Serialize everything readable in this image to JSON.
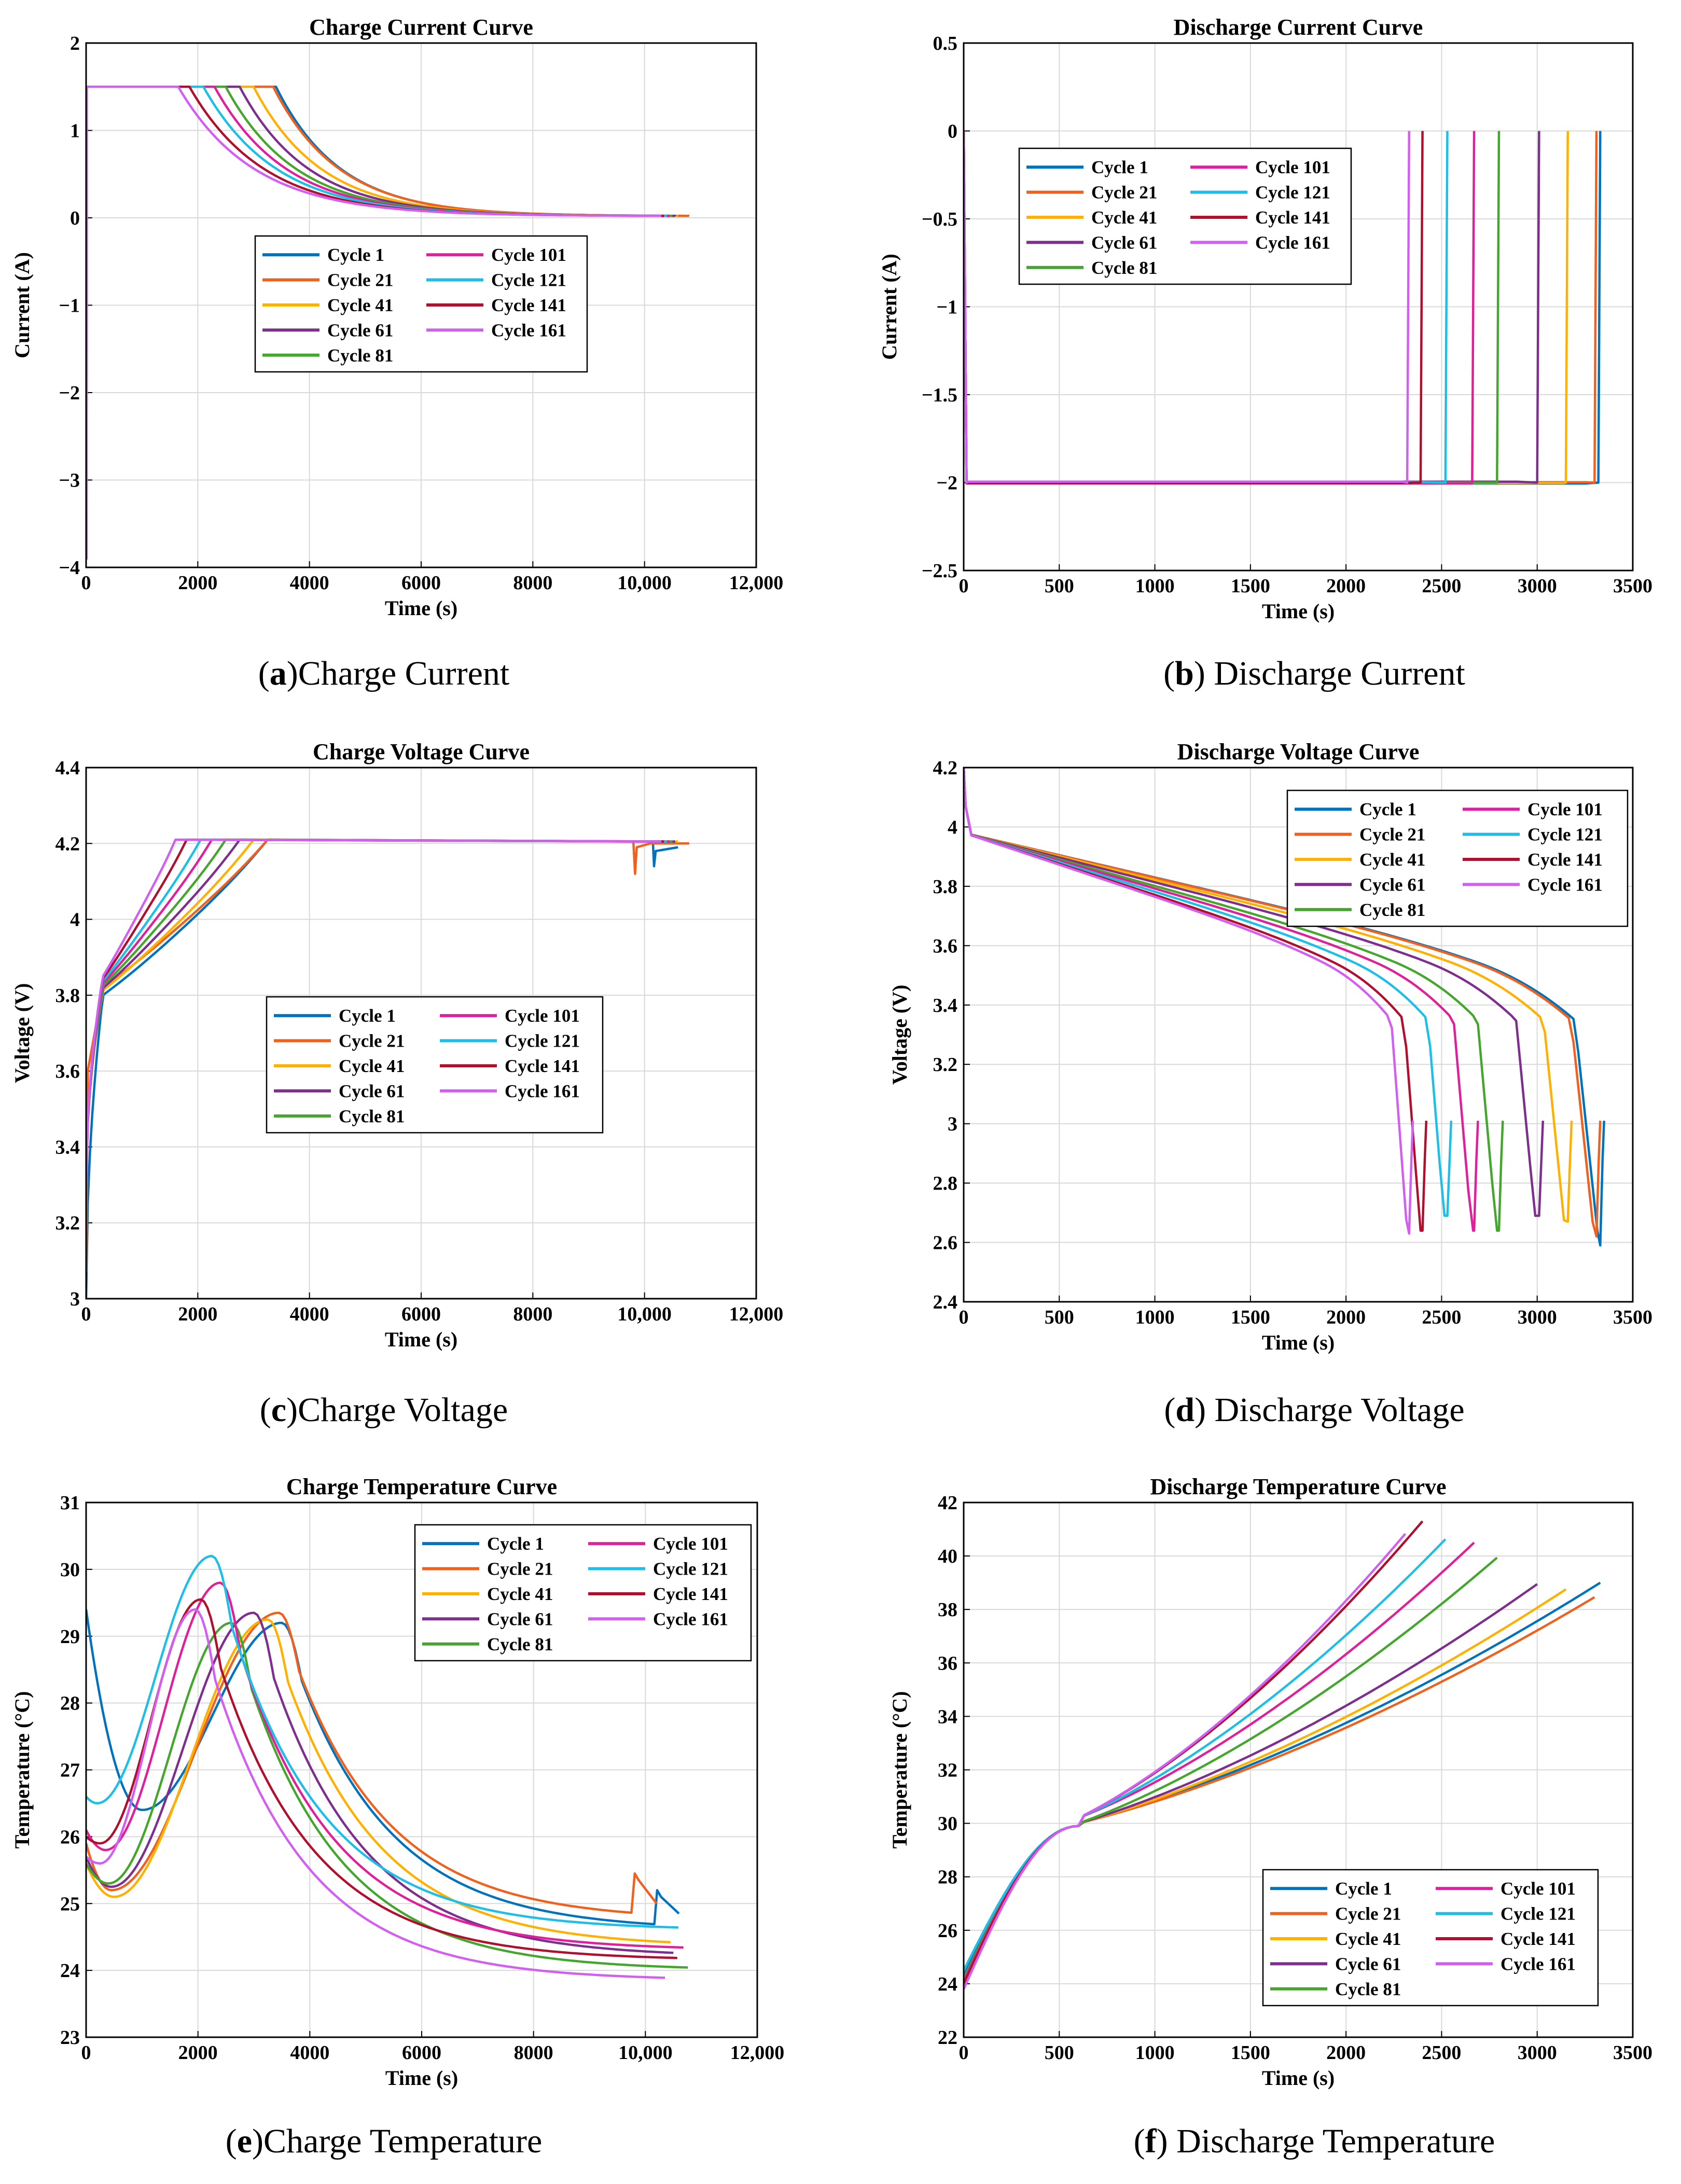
{
  "series_names": [
    "Cycle 1",
    "Cycle 21",
    "Cycle 41",
    "Cycle 61",
    "Cycle 81",
    "Cycle 101",
    "Cycle 121",
    "Cycle 141",
    "Cycle 161"
  ],
  "series_colors": [
    "#0072BD",
    "#F0611E",
    "#FFB000",
    "#7E2F8E",
    "#45A62E",
    "#E0209A",
    "#1DBFE8",
    "#B0102E",
    "#D35EF2"
  ],
  "chart_data": [
    {
      "id": "a",
      "type": "line",
      "title": "Charge Current Curve",
      "caption_letter": "a",
      "caption_paren_open": "(",
      "caption_paren_close": ")",
      "caption_text": "Charge Current",
      "xlabel": "Time (s)",
      "ylabel": "Current (A)",
      "xlim": [
        0,
        12000
      ],
      "ylim": [
        -4,
        2
      ],
      "xticks": [
        0,
        2000,
        4000,
        6000,
        8000,
        10000,
        12000
      ],
      "xtick_labels": [
        "0",
        "2000",
        "4000",
        "6000",
        "8000",
        "10,000",
        "12,000"
      ],
      "yticks": [
        -4,
        -3,
        -2,
        -1,
        0,
        1,
        2
      ],
      "ytick_labels": [
        "−4",
        "−3",
        "−2",
        "−1",
        "0",
        "1",
        "2"
      ],
      "legend_location": "center",
      "kind": "charge_current",
      "series": [
        {
          "name": "Cycle 1",
          "cv_start": 3400,
          "end": 10200
        },
        {
          "name": "Cycle 21",
          "cv_start": 3350,
          "end": 10800
        },
        {
          "name": "Cycle 41",
          "cv_start": 3000,
          "end": 10600
        },
        {
          "name": "Cycle 61",
          "cv_start": 2750,
          "end": 10550
        },
        {
          "name": "Cycle 81",
          "cv_start": 2500,
          "end": 10500
        },
        {
          "name": "Cycle 101",
          "cv_start": 2300,
          "end": 10450
        },
        {
          "name": "Cycle 121",
          "cv_start": 2100,
          "end": 10400
        },
        {
          "name": "Cycle 141",
          "cv_start": 1850,
          "end": 10350
        },
        {
          "name": "Cycle 161",
          "cv_start": 1650,
          "end": 10300
        }
      ]
    },
    {
      "id": "b",
      "type": "line",
      "title": "Discharge Current Curve",
      "caption_letter": "b",
      "caption_paren_open": "(",
      "caption_paren_close": ")",
      "caption_text": " Discharge Current",
      "xlabel": "Time (s)",
      "ylabel": "Current (A)",
      "xlim": [
        0,
        3500
      ],
      "ylim": [
        -2.5,
        0.5
      ],
      "xticks": [
        0,
        500,
        1000,
        1500,
        2000,
        2500,
        3000,
        3500
      ],
      "xtick_labels": [
        "0",
        "500",
        "1000",
        "1500",
        "2000",
        "2500",
        "3000",
        "3500"
      ],
      "yticks": [
        -2.5,
        -2,
        -1.5,
        -1,
        -0.5,
        0,
        0.5
      ],
      "ytick_labels": [
        "−2.5",
        "−2",
        "−1.5",
        "−1",
        "−0.5",
        "0",
        "0.5"
      ],
      "legend_location": "top-left",
      "kind": "discharge_current",
      "series": [
        {
          "name": "Cycle 1",
          "end": 3330
        },
        {
          "name": "Cycle 21",
          "end": 3310
        },
        {
          "name": "Cycle 41",
          "end": 3160
        },
        {
          "name": "Cycle 61",
          "end": 3010
        },
        {
          "name": "Cycle 81",
          "end": 2800
        },
        {
          "name": "Cycle 101",
          "end": 2670
        },
        {
          "name": "Cycle 121",
          "end": 2530
        },
        {
          "name": "Cycle 141",
          "end": 2400
        },
        {
          "name": "Cycle 161",
          "end": 2330
        }
      ]
    },
    {
      "id": "c",
      "type": "line",
      "title": "Charge Voltage Curve",
      "caption_letter": "c",
      "caption_paren_open": "(",
      "caption_paren_close": ")",
      "caption_text": "Charge Voltage",
      "xlabel": "Time (s)",
      "ylabel": "Voltage (V)",
      "xlim": [
        0,
        12000
      ],
      "ylim": [
        3,
        4.4
      ],
      "xticks": [
        0,
        2000,
        4000,
        6000,
        8000,
        10000,
        12000
      ],
      "xtick_labels": [
        "0",
        "2000",
        "4000",
        "6000",
        "8000",
        "10,000",
        "12,000"
      ],
      "yticks": [
        3,
        3.2,
        3.4,
        3.6,
        3.8,
        4,
        4.2,
        4.4
      ],
      "ytick_labels": [
        "3",
        "3.2",
        "3.4",
        "3.6",
        "3.8",
        "4",
        "4.2",
        "4.4"
      ],
      "legend_location": "center",
      "kind": "charge_voltage",
      "series": [
        {
          "name": "Cycle 1",
          "cv_start": 3250,
          "end": 10200
        },
        {
          "name": "Cycle 21",
          "cv_start": 3250,
          "end": 10800
        },
        {
          "name": "Cycle 41",
          "cv_start": 3000,
          "end": 10600
        },
        {
          "name": "Cycle 61",
          "cv_start": 2750,
          "end": 10550
        },
        {
          "name": "Cycle 81",
          "cv_start": 2500,
          "end": 10500
        },
        {
          "name": "Cycle 101",
          "cv_start": 2250,
          "end": 10450
        },
        {
          "name": "Cycle 121",
          "cv_start": 2050,
          "end": 10400
        },
        {
          "name": "Cycle 141",
          "cv_start": 1800,
          "end": 10350
        },
        {
          "name": "Cycle 161",
          "cv_start": 1600,
          "end": 10300
        }
      ]
    },
    {
      "id": "d",
      "type": "line",
      "title": "Discharge Voltage Curve",
      "caption_letter": "d",
      "caption_paren_open": "(",
      "caption_paren_close": ")",
      "caption_text": " Discharge Voltage",
      "xlabel": "Time (s)",
      "ylabel": "Voltage (V)",
      "xlim": [
        0,
        3500
      ],
      "ylim": [
        2.4,
        4.2
      ],
      "xticks": [
        0,
        500,
        1000,
        1500,
        2000,
        2500,
        3000,
        3500
      ],
      "xtick_labels": [
        "0",
        "500",
        "1000",
        "1500",
        "2000",
        "2500",
        "3000",
        "3500"
      ],
      "yticks": [
        2.4,
        2.6,
        2.8,
        3,
        3.2,
        3.4,
        3.6,
        3.8,
        4,
        4.2
      ],
      "ytick_labels": [
        "2.4",
        "2.6",
        "2.8",
        "3",
        "3.2",
        "3.4",
        "3.6",
        "3.8",
        "4",
        "4.2"
      ],
      "legend_location": "top-right",
      "kind": "discharge_voltage",
      "series": [
        {
          "name": "Cycle 1",
          "end": 3330,
          "min": 2.59
        },
        {
          "name": "Cycle 21",
          "end": 3310,
          "min": 2.62
        },
        {
          "name": "Cycle 41",
          "end": 3160,
          "min": 2.67
        },
        {
          "name": "Cycle 61",
          "end": 3010,
          "min": 2.69
        },
        {
          "name": "Cycle 81",
          "end": 2800,
          "min": 2.64
        },
        {
          "name": "Cycle 101",
          "end": 2670,
          "min": 2.64
        },
        {
          "name": "Cycle 121",
          "end": 2530,
          "min": 2.69
        },
        {
          "name": "Cycle 141",
          "end": 2400,
          "min": 2.64
        },
        {
          "name": "Cycle 161",
          "end": 2330,
          "min": 2.63
        }
      ]
    },
    {
      "id": "e",
      "type": "line",
      "title": "Charge Temperature Curve",
      "caption_letter": "e",
      "caption_paren_open": "(",
      "caption_paren_close": ")",
      "caption_text": "Charge Temperature",
      "xlabel": "Time (s)",
      "ylabel": "Temperature (°C)",
      "xlim": [
        0,
        12000
      ],
      "ylim": [
        23,
        31
      ],
      "xticks": [
        0,
        2000,
        4000,
        6000,
        8000,
        10000,
        12000
      ],
      "xtick_labels": [
        "0",
        "2000",
        "4000",
        "6000",
        "8000",
        "10,000",
        "12,000"
      ],
      "yticks": [
        23,
        24,
        25,
        26,
        27,
        28,
        29,
        30,
        31
      ],
      "ytick_labels": [
        "23",
        "24",
        "25",
        "26",
        "27",
        "28",
        "29",
        "30",
        "31"
      ],
      "legend_location": "top-right",
      "kind": "charge_temp",
      "series": [
        {
          "name": "Cycle 1",
          "t0": 29.4,
          "tmin": 26.4,
          "tmin_t": 1000,
          "peak": 29.2,
          "peak_t": 3500,
          "tend": 24.6,
          "end": 10200,
          "bump": 25.2
        },
        {
          "name": "Cycle 21",
          "t0": 25.9,
          "tmin": 25.2,
          "tmin_t": 450,
          "peak": 29.35,
          "peak_t": 3450,
          "tend": 24.75,
          "end": 9800,
          "bump": 25.45
        },
        {
          "name": "Cycle 41",
          "t0": 25.6,
          "tmin": 25.1,
          "tmin_t": 500,
          "peak": 29.25,
          "peak_t": 3250,
          "tend": 24.35,
          "end": 10500
        },
        {
          "name": "Cycle 61",
          "t0": 25.7,
          "tmin": 25.25,
          "tmin_t": 450,
          "peak": 29.35,
          "peak_t": 3000,
          "tend": 24.2,
          "end": 10500
        },
        {
          "name": "Cycle 81",
          "t0": 25.6,
          "tmin": 25.3,
          "tmin_t": 400,
          "peak": 29.2,
          "peak_t": 2600,
          "tend": 24.0,
          "end": 10800
        },
        {
          "name": "Cycle 101",
          "t0": 26.1,
          "tmin": 25.8,
          "tmin_t": 350,
          "peak": 29.8,
          "peak_t": 2400,
          "tend": 24.3,
          "end": 10700
        },
        {
          "name": "Cycle 121",
          "t0": 26.6,
          "tmin": 26.5,
          "tmin_t": 200,
          "peak": 30.2,
          "peak_t": 2250,
          "tend": 24.6,
          "end": 10600
        },
        {
          "name": "Cycle 141",
          "t0": 26.0,
          "tmin": 25.9,
          "tmin_t": 250,
          "peak": 29.55,
          "peak_t": 2050,
          "tend": 24.15,
          "end": 10600
        },
        {
          "name": "Cycle 161",
          "t0": 25.7,
          "tmin": 25.6,
          "tmin_t": 250,
          "peak": 29.4,
          "peak_t": 1950,
          "tend": 23.85,
          "end": 10400
        }
      ]
    },
    {
      "id": "f",
      "type": "line",
      "title": "Discharge Temperature Curve",
      "caption_letter": "f",
      "caption_paren_open": "(",
      "caption_paren_close": ")",
      "caption_text": " Discharge Temperature",
      "xlabel": "Time (s)",
      "ylabel": "Temperature (°C)",
      "xlim": [
        0,
        3500
      ],
      "ylim": [
        22,
        42
      ],
      "xticks": [
        0,
        500,
        1000,
        1500,
        2000,
        2500,
        3000,
        3500
      ],
      "xtick_labels": [
        "0",
        "500",
        "1000",
        "1500",
        "2000",
        "2500",
        "3000",
        "3500"
      ],
      "yticks": [
        22,
        24,
        26,
        28,
        30,
        32,
        34,
        36,
        38,
        40,
        42
      ],
      "ytick_labels": [
        "22",
        "24",
        "26",
        "28",
        "30",
        "32",
        "34",
        "36",
        "38",
        "40",
        "42"
      ],
      "legend_location": "bottom-right",
      "kind": "discharge_temp",
      "series": [
        {
          "name": "Cycle 1",
          "end": 3330,
          "tend": 39.0
        },
        {
          "name": "Cycle 21",
          "end": 3310,
          "tend": 38.5
        },
        {
          "name": "Cycle 41",
          "end": 3160,
          "tend": 38.8
        },
        {
          "name": "Cycle 61",
          "end": 3010,
          "tend": 39.0
        },
        {
          "name": "Cycle 81",
          "end": 2800,
          "tend": 40.0
        },
        {
          "name": "Cycle 101",
          "end": 2670,
          "tend": 40.5
        },
        {
          "name": "Cycle 121",
          "end": 2530,
          "tend": 40.7
        },
        {
          "name": "Cycle 141",
          "end": 2400,
          "tend": 41.3
        },
        {
          "name": "Cycle 161",
          "end": 2330,
          "tend": 41.0
        }
      ]
    }
  ]
}
